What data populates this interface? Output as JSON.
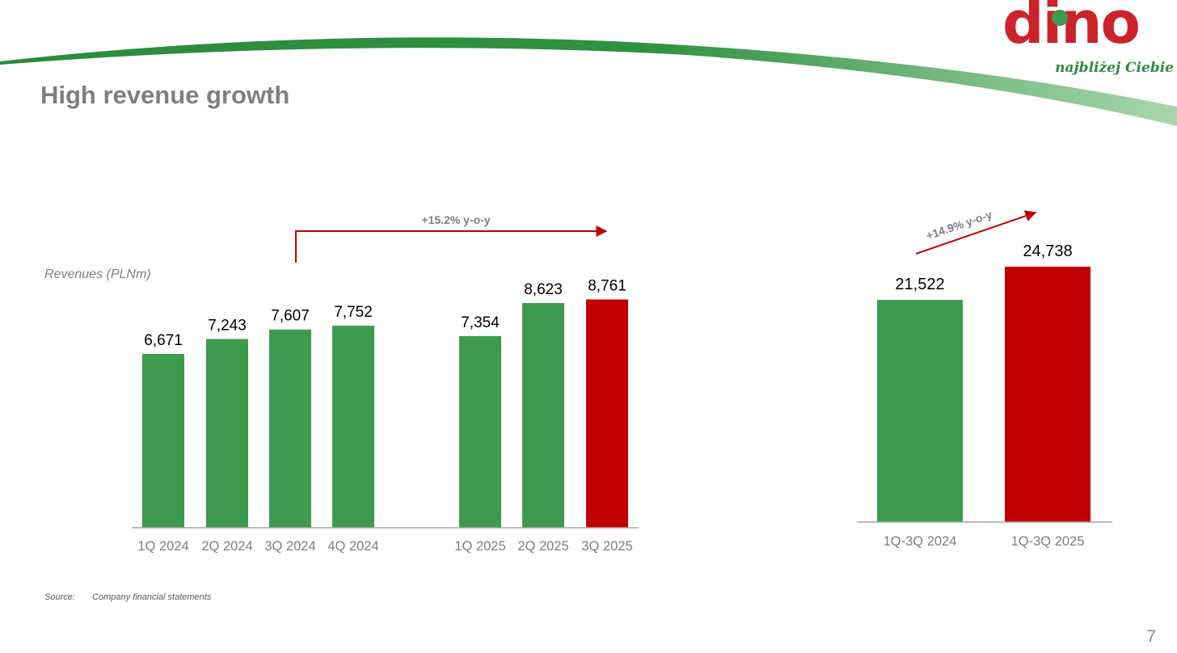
{
  "slide": {
    "title": "High revenue growth",
    "page_number": "7",
    "source_label": "Source:",
    "source_text": "Company financial statements"
  },
  "logo": {
    "word": "dino",
    "tagline": "najbliżej Ciebie"
  },
  "colors": {
    "green": "#3e9a4f",
    "red": "#c00000",
    "arrow": "#c00000",
    "text": "#000000",
    "tick": "#7f7f7f"
  },
  "chart_data": [
    {
      "type": "bar",
      "ylabel": "Revenues (PLNm)",
      "categories": [
        "1Q 2024",
        "2Q 2024",
        "3Q 2024",
        "4Q 2024",
        "1Q 2025",
        "2Q 2025",
        "3Q 2025"
      ],
      "values": [
        6671,
        7243,
        7607,
        7752,
        7354,
        8623,
        8761
      ],
      "value_labels": [
        "6,671",
        "7,243",
        "7,607",
        "7,752",
        "7,354",
        "8,623",
        "8,761"
      ],
      "highlight": [
        false,
        false,
        false,
        false,
        false,
        false,
        true
      ],
      "annotation": "+15.2% y-o-y"
    },
    {
      "type": "bar",
      "categories": [
        "1Q-3Q 2024",
        "1Q-3Q 2025"
      ],
      "values": [
        21522,
        24738
      ],
      "value_labels": [
        "21,522",
        "24,738"
      ],
      "highlight": [
        false,
        true
      ],
      "annotation": "+14.9% y-o-y"
    }
  ]
}
